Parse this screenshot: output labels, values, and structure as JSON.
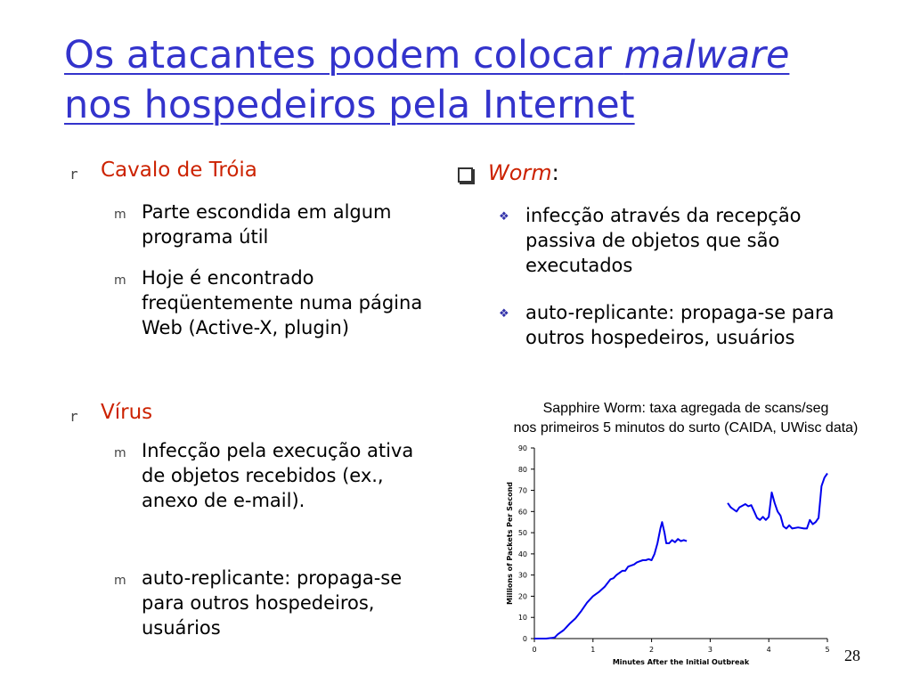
{
  "slide": {
    "title_part1": "Os atacantes podem colocar ",
    "title_italic": "malware",
    "title_part2": "nos hospedeiros pela Internet",
    "page_number": "28"
  },
  "left": {
    "bullet_marker": "r",
    "sub_marker": "m",
    "trojan": {
      "label": "Cavalo de Tróia",
      "items": [
        "Parte escondida em algum programa útil",
        "Hoje é encontrado freqüentemente numa página Web (Active-X, plugin)"
      ]
    },
    "virus": {
      "label": "Vírus",
      "items": [
        "Infecção pela execução ativa de objetos recebidos (ex., anexo de e-mail).",
        "auto-replicante: propaga-se para outros hospedeiros, usuários"
      ]
    }
  },
  "right": {
    "worm_label": "Worm",
    "worm_colon": ":",
    "items": [
      "infecção através da recepção passiva de objetos que são executados",
      "auto-replicante: propaga-se para outros hospedeiros, usuários"
    ]
  },
  "caption": {
    "line1": "Sapphire Worm: taxa agregada de scans/seg",
    "line2": "nos primeiros 5 minutos do surto (CAIDA, UWisc data)"
  },
  "colors": {
    "title": "#3333cc",
    "accent": "#cc2200",
    "line": "#0000ee"
  },
  "chart_data": {
    "type": "line",
    "xlabel": "Minutes After the Initial Outbreak",
    "ylabel": "Millions of Packets Per Second",
    "xlim": [
      0,
      5
    ],
    "ylim": [
      0,
      90
    ],
    "xticks": [
      0,
      1,
      2,
      3,
      4,
      5
    ],
    "yticks": [
      0,
      10,
      20,
      30,
      40,
      50,
      60,
      70,
      80,
      90
    ],
    "grid": false,
    "series": [
      {
        "segments": [
          [
            [
              0,
              0
            ],
            [
              0.1,
              0
            ],
            [
              0.2,
              0
            ],
            [
              0.3,
              0.3
            ],
            [
              0.35,
              0.6
            ],
            [
              0.4,
              2
            ],
            [
              0.5,
              4
            ],
            [
              0.6,
              7
            ],
            [
              0.7,
              9.5
            ],
            [
              0.8,
              13
            ],
            [
              0.9,
              17
            ],
            [
              1.0,
              20
            ],
            [
              1.1,
              22
            ],
            [
              1.2,
              24.5
            ],
            [
              1.3,
              28
            ],
            [
              1.35,
              28.5
            ],
            [
              1.4,
              30
            ],
            [
              1.5,
              32
            ],
            [
              1.55,
              32
            ],
            [
              1.6,
              34
            ],
            [
              1.7,
              35
            ],
            [
              1.75,
              36
            ],
            [
              1.8,
              36.5
            ],
            [
              1.85,
              37
            ],
            [
              1.9,
              37
            ],
            [
              1.95,
              37.5
            ],
            [
              2.0,
              37
            ],
            [
              2.05,
              40
            ],
            [
              2.1,
              45
            ],
            [
              2.15,
              52
            ],
            [
              2.18,
              55
            ],
            [
              2.22,
              50
            ],
            [
              2.25,
              45
            ],
            [
              2.3,
              45
            ],
            [
              2.35,
              46.5
            ],
            [
              2.4,
              45.5
            ],
            [
              2.45,
              47
            ],
            [
              2.5,
              46
            ],
            [
              2.55,
              46.5
            ],
            [
              2.6,
              46
            ]
          ],
          [
            [
              3.3,
              64
            ],
            [
              3.35,
              62
            ],
            [
              3.4,
              61
            ],
            [
              3.45,
              60
            ],
            [
              3.5,
              62
            ],
            [
              3.6,
              63.5
            ],
            [
              3.65,
              62.5
            ],
            [
              3.7,
              63
            ],
            [
              3.75,
              60
            ],
            [
              3.8,
              57
            ],
            [
              3.85,
              56
            ],
            [
              3.9,
              57.5
            ],
            [
              3.95,
              56
            ],
            [
              4.0,
              57.5
            ],
            [
              4.05,
              69
            ],
            [
              4.1,
              64
            ],
            [
              4.15,
              60
            ],
            [
              4.2,
              58
            ],
            [
              4.25,
              53
            ],
            [
              4.3,
              52
            ],
            [
              4.35,
              53.5
            ],
            [
              4.4,
              52
            ],
            [
              4.5,
              52.5
            ],
            [
              4.6,
              52
            ],
            [
              4.65,
              52
            ],
            [
              4.7,
              56
            ],
            [
              4.75,
              54
            ],
            [
              4.8,
              55
            ],
            [
              4.85,
              57
            ],
            [
              4.9,
              72
            ],
            [
              4.95,
              76
            ],
            [
              5.0,
              78
            ]
          ]
        ]
      }
    ]
  }
}
